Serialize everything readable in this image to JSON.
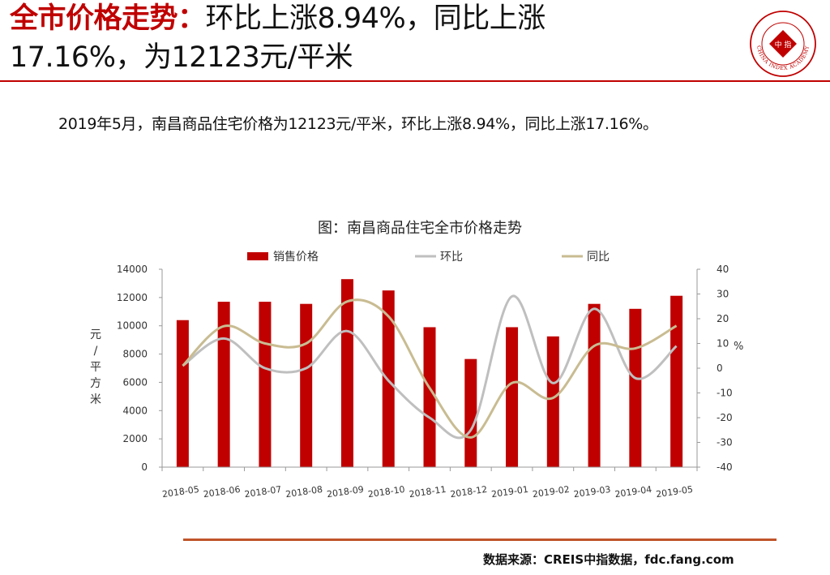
{
  "header": {
    "title_lead": "全市价格走势：",
    "title_rest": "环比上涨8.94%，同比上涨",
    "title_line2": "17.16%，为12123元/平米",
    "logo": {
      "icon": "china-index-academy-seal-icon",
      "text": "CHINA INDEX ACADEMY",
      "center_text": "中 指",
      "color": "#c00000"
    }
  },
  "summary": "2019年5月，南昌商品住宅价格为12123元/平米，环比上涨8.94%，同比上涨17.16%。",
  "source": "数据来源：CREIS中指数据，fdc.fang.com",
  "colors": {
    "accent": "#c00000",
    "bar": "#c00000",
    "mom_line": "#bfbfbf",
    "yoy_line": "#c9bc92",
    "rule": "#c0542a"
  },
  "chart_data": {
    "type": "bar",
    "title": "图：南昌商品住宅全市价格走势",
    "categories": [
      "2018-05",
      "2018-06",
      "2018-07",
      "2018-08",
      "2018-09",
      "2018-10",
      "2018-11",
      "2018-12",
      "2019-01",
      "2019-02",
      "2019-03",
      "2019-04",
      "2019-05"
    ],
    "series": [
      {
        "name": "销售价格",
        "type": "bar",
        "axis": "left",
        "values": [
          10400,
          11700,
          11700,
          11550,
          13300,
          12500,
          9900,
          7650,
          9900,
          9250,
          11550,
          11200,
          12123
        ]
      },
      {
        "name": "环比",
        "type": "line",
        "axis": "right",
        "values": [
          1,
          12,
          0,
          0,
          15,
          -5,
          -20,
          -25,
          29,
          -6,
          24,
          -4,
          8.94
        ]
      },
      {
        "name": "同比",
        "type": "line",
        "axis": "right",
        "values": [
          1,
          17,
          10,
          10,
          27,
          21,
          -8,
          -28,
          -6,
          -12,
          9,
          8,
          17.16
        ]
      }
    ],
    "left_axis": {
      "label": "元/平方米",
      "ylim": [
        0,
        14000
      ],
      "ticks": [
        0,
        2000,
        4000,
        6000,
        8000,
        10000,
        12000,
        14000
      ]
    },
    "right_axis": {
      "label": "%",
      "ylim": [
        -40,
        40
      ],
      "ticks": [
        -40,
        -30,
        -20,
        -10,
        0,
        10,
        20,
        30,
        40
      ]
    },
    "legend": "top",
    "grid": false
  }
}
